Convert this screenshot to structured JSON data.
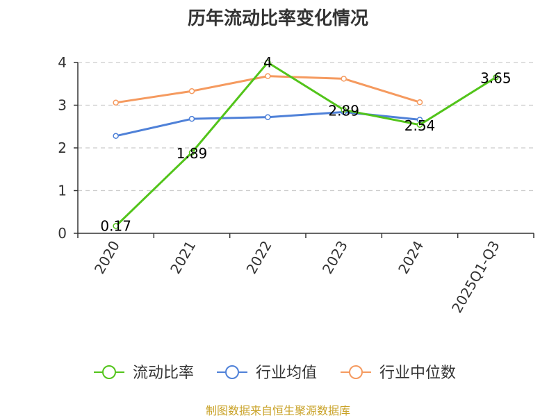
{
  "chart_data": {
    "type": "line",
    "title": "历年流动比率变化情况",
    "categories": [
      "2020",
      "2021",
      "2022",
      "2023",
      "2024",
      "2025Q1-Q3"
    ],
    "series": [
      {
        "name": "流动比率",
        "color": "#52c41a",
        "values": [
          0.17,
          1.89,
          4,
          2.89,
          2.54,
          3.65
        ],
        "show_labels": true
      },
      {
        "name": "行业均值",
        "color": "#4f81d8",
        "values": [
          2.28,
          2.68,
          2.72,
          2.84,
          2.66,
          null
        ],
        "show_labels": false
      },
      {
        "name": "行业中位数",
        "color": "#f59a5f",
        "values": [
          3.06,
          3.33,
          3.68,
          3.62,
          3.07,
          null
        ],
        "show_labels": false
      }
    ],
    "yticks": [
      0,
      1,
      2,
      3,
      4
    ],
    "ylim": [
      0,
      4
    ],
    "grid": true,
    "legend_position": "bottom"
  },
  "footer": {
    "source": "制图数据来自恒生聚源数据库",
    "source_color": "#c9a227"
  }
}
